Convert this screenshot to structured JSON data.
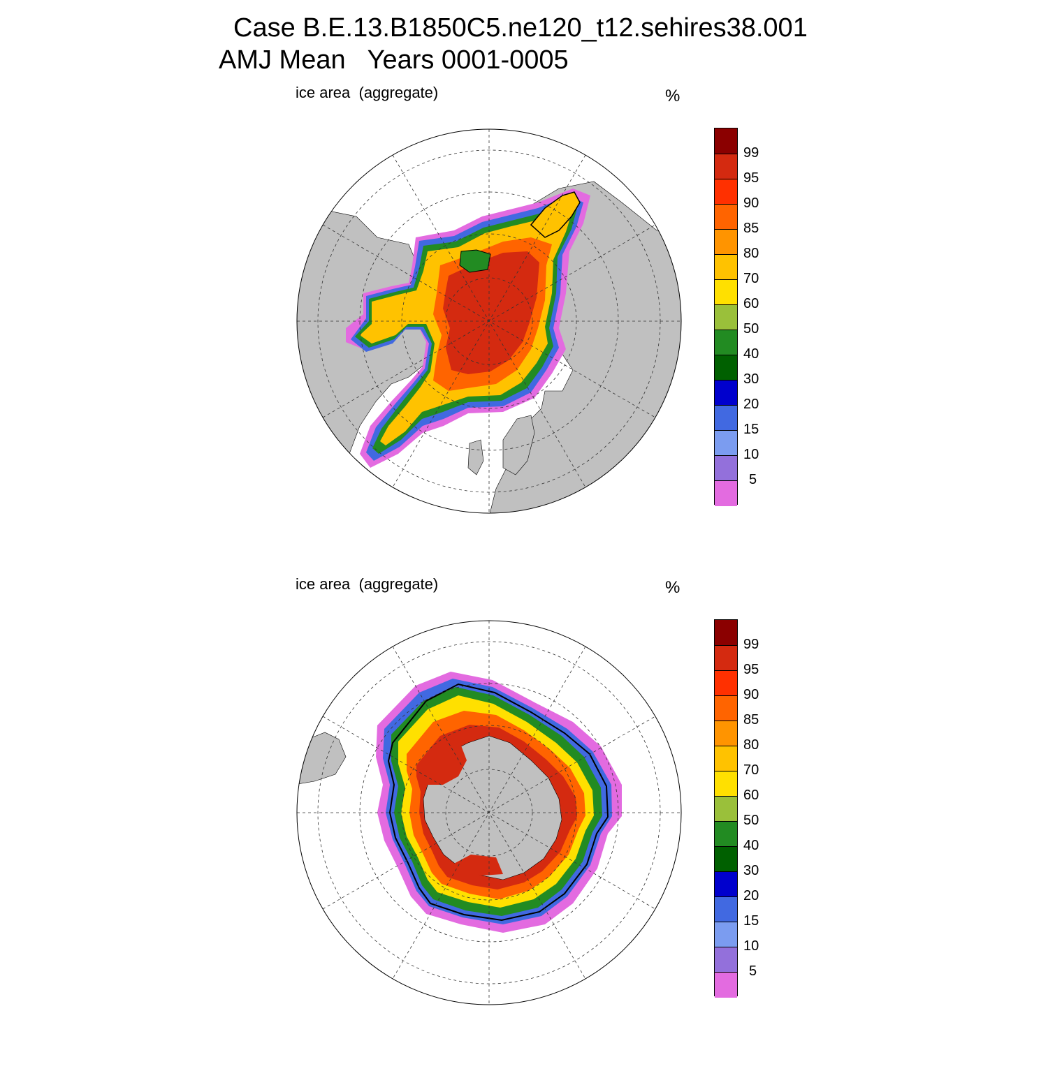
{
  "title": {
    "line1": "Case B.E.13.B1850C5.ne120_t12.sehires38.001",
    "line2": "AMJ Mean   Years 0001-0005"
  },
  "panels": [
    {
      "label": "ice area  (aggregate)",
      "unit": "%",
      "projection": "north-polar-stereographic"
    },
    {
      "label": "ice area  (aggregate)",
      "unit": "%",
      "projection": "south-polar-stereographic"
    }
  ],
  "colorbar": {
    "levels": [
      "99",
      "95",
      "90",
      "85",
      "80",
      "70",
      "60",
      "50",
      "40",
      "30",
      "20",
      "15",
      "10",
      "5"
    ],
    "colors": [
      "#8b0000",
      "#d42a10",
      "#ff3000",
      "#ff6400",
      "#ff9400",
      "#ffc200",
      "#ffe000",
      "#9ac03a",
      "#228b22",
      "#006000",
      "#0000cd",
      "#4169e1",
      "#7b9cf0",
      "#9370db",
      "#e36be0"
    ]
  },
  "colors": {
    "land": "#c0c0c0",
    "ocean": "#ffffff",
    "outline": "#000000"
  }
}
